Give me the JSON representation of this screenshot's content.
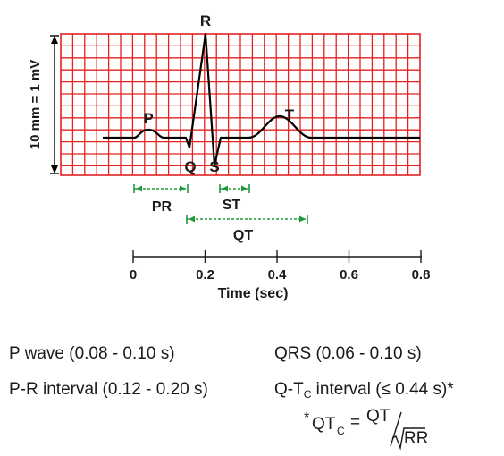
{
  "waves": {
    "p": "P",
    "q": "Q",
    "r": "R",
    "s": "S",
    "t": "T"
  },
  "scale_label": "10 mm = 1 mV",
  "intervals": {
    "pr": "PR",
    "st": "ST",
    "qt": "QT"
  },
  "axis": {
    "ticks": [
      "0",
      "0.2",
      "0.4",
      "0.6",
      "0.8"
    ],
    "label": "Time (sec)"
  },
  "formulas": {
    "p_wave": "P wave (0.08 - 0.10 s)",
    "qrs": "QRS (0.06 - 0.10 s)",
    "pr_interval": "P-R interval (0.12 - 0.20 s)",
    "qtc_prefix": "Q-T",
    "qtc_sub": "C",
    "qtc_suffix": " interval (≤ 0.44 s)*",
    "qtc_def_star": "*",
    "qtc_def_lhs": "QT",
    "qtc_def_sub": "C",
    "qtc_def_eq": "=",
    "qtc_def_num": "QT",
    "qtc_def_den": "RR"
  },
  "colors": {
    "grid": "#e32222",
    "interval": "#1f9a3a",
    "trace": "#000000"
  }
}
